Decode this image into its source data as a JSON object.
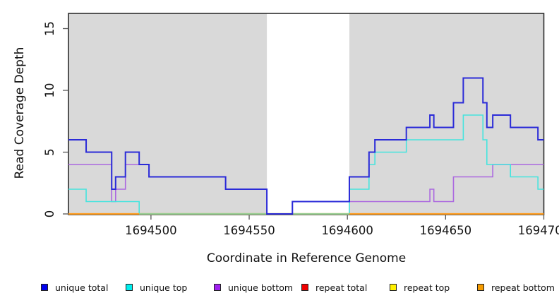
{
  "chart_data": {
    "type": "line",
    "subtype": "step-coverage",
    "title": "",
    "xlabel": "Coordinate in Reference Genome",
    "ylabel": "Read Coverage Depth",
    "xlim": [
      1694458,
      1694700
    ],
    "ylim": [
      0,
      16.2
    ],
    "x_end": 1694700,
    "grid": false,
    "panel_color": "#d9d9d9",
    "xticks": {
      "values": [
        1694500,
        1694550,
        1694600,
        1694650,
        1694700
      ],
      "labels": [
        "1694500",
        "1694550",
        "1694600",
        "1694650",
        "1694700"
      ]
    },
    "yticks": {
      "values": [
        0,
        5,
        10,
        15
      ],
      "labels": [
        "0",
        "5",
        "10",
        "15"
      ]
    },
    "background_bands": [
      {
        "from": 1694458,
        "to": 1694559,
        "color": "#d9d9d9"
      },
      {
        "from": 1694601,
        "to": 1694700,
        "color": "#d9d9d9"
      }
    ],
    "series": [
      {
        "key": "unique_total",
        "name": "unique total",
        "line_color": "#2b2bd8",
        "legend_color": "#0000ee",
        "width": 2,
        "steps": [
          [
            1694458,
            6
          ],
          [
            1694467,
            5
          ],
          [
            1694480,
            2
          ],
          [
            1694482,
            3
          ],
          [
            1694487,
            5
          ],
          [
            1694494,
            4
          ],
          [
            1694499,
            3
          ],
          [
            1694538,
            2
          ],
          [
            1694559,
            0
          ],
          [
            1694572,
            1
          ],
          [
            1694601,
            3
          ],
          [
            1694611,
            5
          ],
          [
            1694614,
            6
          ],
          [
            1694630,
            7
          ],
          [
            1694642,
            8
          ],
          [
            1694644,
            7
          ],
          [
            1694654,
            9
          ],
          [
            1694659,
            11
          ],
          [
            1694669,
            9
          ],
          [
            1694671,
            7
          ],
          [
            1694674,
            8
          ],
          [
            1694683,
            7
          ],
          [
            1694697,
            6
          ]
        ]
      },
      {
        "key": "unique_top",
        "name": "unique top",
        "line_color": "#45e4de",
        "legend_color": "#00eeee",
        "width": 1.6,
        "steps": [
          [
            1694458,
            2
          ],
          [
            1694467,
            1
          ],
          [
            1694494,
            0
          ],
          [
            1694601,
            2
          ],
          [
            1694611,
            4
          ],
          [
            1694614,
            5
          ],
          [
            1694630,
            6
          ],
          [
            1694659,
            8
          ],
          [
            1694669,
            6
          ],
          [
            1694671,
            4
          ],
          [
            1694683,
            3
          ],
          [
            1694697,
            2
          ]
        ]
      },
      {
        "key": "unique_bottom",
        "name": "unique bottom",
        "line_color": "#ab68e0",
        "legend_color": "#a020f0",
        "width": 1.6,
        "steps": [
          [
            1694458,
            4
          ],
          [
            1694480,
            1
          ],
          [
            1694482,
            2
          ],
          [
            1694487,
            4
          ],
          [
            1694499,
            3
          ],
          [
            1694538,
            2
          ],
          [
            1694559,
            0
          ],
          [
            1694572,
            1
          ],
          [
            1694642,
            2
          ],
          [
            1694644,
            1
          ],
          [
            1694654,
            3
          ],
          [
            1694674,
            4
          ]
        ]
      },
      {
        "key": "repeat_total",
        "name": "repeat total",
        "line_color": "#dd0000",
        "legend_color": "#ee0000",
        "width": 1.4,
        "steps": [
          [
            1694458,
            0
          ]
        ]
      },
      {
        "key": "repeat_top",
        "name": "repeat top",
        "line_color": "#f5e900",
        "legend_color": "#fff000",
        "width": 1.4,
        "steps": [
          [
            1694458,
            0
          ]
        ]
      },
      {
        "key": "repeat_bottom",
        "name": "repeat bottom",
        "line_color": "#ff9d1f",
        "legend_color": "#f59b00",
        "width": 2.2,
        "steps": [
          [
            1694458,
            0
          ]
        ]
      }
    ],
    "draw_order": [
      "repeat_total",
      "repeat_top",
      "unique_bottom",
      "unique_top",
      "repeat_bottom",
      "unique_total"
    ],
    "overlap_zero_segment": {
      "from": 1694494,
      "to": 1694601,
      "color": "#96cd92",
      "note": "unique top and repeat bottom both at depth 0; blended line appears pale green"
    }
  }
}
